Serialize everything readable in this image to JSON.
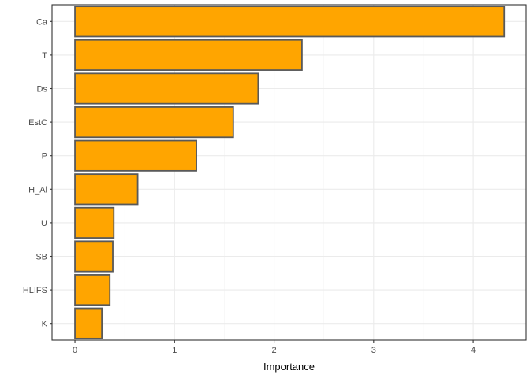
{
  "chart_data": {
    "type": "bar",
    "orientation": "horizontal",
    "categories": [
      "Ca",
      "T",
      "Ds",
      "EstC",
      "P",
      "H_Al",
      "U",
      "SB",
      "HLIFS",
      "K"
    ],
    "values": [
      4.31,
      2.28,
      1.84,
      1.59,
      1.22,
      0.63,
      0.39,
      0.38,
      0.35,
      0.27
    ],
    "title": "",
    "xlabel": "Importance",
    "ylabel": "",
    "xlim": [
      -0.23,
      4.53
    ],
    "xticks": [
      0,
      1,
      2,
      3,
      4
    ],
    "grid": true,
    "legend": "none",
    "colors": {
      "bar_fill": "#FFA500",
      "bar_stroke": "#595959",
      "grid_major": "#EBEBEB",
      "grid_minor": "#F5F5F5",
      "panel_border": "#333333"
    }
  }
}
